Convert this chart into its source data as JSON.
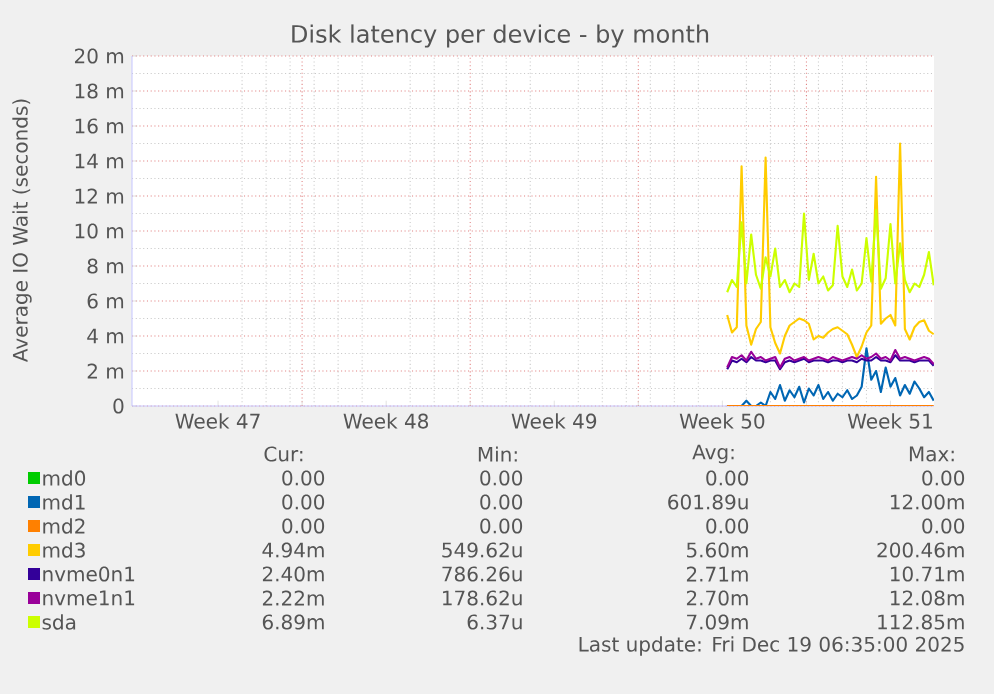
{
  "chart_data": {
    "type": "line",
    "title": "Disk latency per device - by month",
    "ylabel": "Average IO Wait (seconds)",
    "x": [
      "2025-12-10T16:48",
      "2025-12-10T21:36",
      "2025-12-11T02:24",
      "2025-12-11T07:12",
      "2025-12-11T12:00",
      "2025-12-11T16:48",
      "2025-12-11T21:36",
      "2025-12-12T02:24",
      "2025-12-12T07:12",
      "2025-12-12T12:00",
      "2025-12-12T16:48",
      "2025-12-12T21:36",
      "2025-12-13T02:24",
      "2025-12-13T07:12",
      "2025-12-13T12:00",
      "2025-12-13T16:48",
      "2025-12-13T21:36",
      "2025-12-14T02:24",
      "2025-12-14T07:12",
      "2025-12-14T12:00",
      "2025-12-14T16:48",
      "2025-12-14T21:36",
      "2025-12-15T02:24",
      "2025-12-15T07:12",
      "2025-12-15T12:00",
      "2025-12-15T16:48",
      "2025-12-15T21:36",
      "2025-12-16T02:24",
      "2025-12-16T07:12",
      "2025-12-16T12:00",
      "2025-12-16T16:48",
      "2025-12-16T21:36",
      "2025-12-17T02:24",
      "2025-12-17T07:12",
      "2025-12-17T12:00",
      "2025-12-17T16:48",
      "2025-12-17T21:36",
      "2025-12-18T02:24",
      "2025-12-18T07:12",
      "2025-12-18T12:00",
      "2025-12-18T16:48",
      "2025-12-18T21:36",
      "2025-12-19T02:24",
      "2025-12-19T07:12"
    ],
    "xlim": [
      "2025-11-15T22:00",
      "2025-12-19T07:30"
    ],
    "xticks": [
      {
        "value": "2025-11-19T12:00",
        "label": "Week 47"
      },
      {
        "value": "2025-11-23T00:00",
        "label": null
      },
      {
        "value": "2025-11-26T12:00",
        "label": "Week 48"
      },
      {
        "value": "2025-11-30T00:00",
        "label": null
      },
      {
        "value": "2025-12-03T12:00",
        "label": "Week 49"
      },
      {
        "value": "2025-12-07T00:00",
        "label": null
      },
      {
        "value": "2025-12-10T12:00",
        "label": "Week 50"
      },
      {
        "value": "2025-12-14T00:00",
        "label": null
      },
      {
        "value": "2025-12-17T12:00",
        "label": "Week 51"
      }
    ],
    "ylim": [
      0,
      20
    ],
    "yticks": [
      0,
      {
        "value": 2,
        "label": "2 m"
      },
      {
        "value": 4,
        "label": "4 m"
      },
      {
        "value": 6,
        "label": "6 m"
      },
      {
        "value": 8,
        "label": "8 m"
      },
      {
        "value": 10,
        "label": "10 m"
      },
      {
        "value": 12,
        "label": "12 m"
      },
      {
        "value": 14,
        "label": "14 m"
      },
      {
        "value": 16,
        "label": "16 m"
      },
      {
        "value": 18,
        "label": "18 m"
      },
      {
        "value": 20,
        "label": "20 m"
      }
    ],
    "grid": true,
    "legend": "bottom",
    "series": [
      {
        "name": "md0",
        "color": "#00cc00",
        "values": [
          null,
          null,
          null,
          null,
          null,
          null,
          null,
          null,
          null,
          null,
          null,
          null,
          null,
          null,
          null,
          null,
          null,
          null,
          null,
          null,
          null,
          null,
          null,
          null,
          null,
          null,
          null,
          null,
          null,
          null,
          null,
          null,
          null,
          null,
          null,
          null,
          null,
          null,
          null,
          null,
          null,
          null,
          null,
          null
        ]
      },
      {
        "name": "md1",
        "color": "#0066b3",
        "values": [
          0,
          0,
          0,
          0,
          0.3,
          0,
          0,
          0.2,
          0,
          0.8,
          0.4,
          1.2,
          0.3,
          0.9,
          0.5,
          1.1,
          0.2,
          1.0,
          0.6,
          1.2,
          0.4,
          0.8,
          0.3,
          0.7,
          0.5,
          0.9,
          0.4,
          0.6,
          1.1,
          3.3,
          1.5,
          2.0,
          0.8,
          2.2,
          1.1,
          1.6,
          0.6,
          1.2,
          0.7,
          1.4,
          1.0,
          0.5,
          0.8,
          0.3
        ]
      },
      {
        "name": "md2",
        "color": "#ff8000",
        "values": [
          0,
          0,
          0,
          0,
          0,
          0,
          0,
          0,
          0,
          0,
          0,
          0,
          0,
          0,
          0,
          0,
          0,
          0,
          0,
          0,
          0,
          0,
          0,
          0,
          0,
          0,
          0,
          0,
          0,
          0,
          0,
          0,
          0,
          0,
          0,
          0,
          0,
          0,
          0,
          0,
          0,
          0,
          0,
          0
        ]
      },
      {
        "name": "md3",
        "color": "#ffcc00",
        "values": [
          5.2,
          4.2,
          4.5,
          13.7,
          4.6,
          3.5,
          4.4,
          4.8,
          14.2,
          4.5,
          3.6,
          3.0,
          4.0,
          4.6,
          4.8,
          5.0,
          4.9,
          4.7,
          3.8,
          4.0,
          3.9,
          4.2,
          4.4,
          4.5,
          4.3,
          4.1,
          3.5,
          2.8,
          3.4,
          4.2,
          4.6,
          13.1,
          4.7,
          5.0,
          5.2,
          4.6,
          15.0,
          4.4,
          3.8,
          4.5,
          4.8,
          4.9,
          4.3,
          4.1
        ]
      },
      {
        "name": "nvme0n1",
        "color": "#330099",
        "values": [
          2.1,
          2.6,
          2.5,
          2.7,
          2.5,
          2.8,
          2.6,
          2.6,
          2.5,
          2.6,
          2.6,
          2.1,
          2.5,
          2.6,
          2.5,
          2.6,
          2.7,
          2.5,
          2.6,
          2.6,
          2.6,
          2.5,
          2.6,
          2.6,
          2.5,
          2.6,
          2.6,
          2.5,
          2.7,
          2.6,
          2.6,
          2.8,
          2.6,
          2.6,
          2.5,
          2.9,
          2.6,
          2.6,
          2.6,
          2.5,
          2.6,
          2.6,
          2.6,
          2.3
        ]
      },
      {
        "name": "nvme1n1",
        "color": "#990099",
        "values": [
          2.2,
          2.8,
          2.7,
          2.9,
          2.6,
          3.1,
          2.7,
          2.8,
          2.6,
          2.7,
          2.8,
          2.2,
          2.7,
          2.8,
          2.6,
          2.7,
          2.8,
          2.6,
          2.7,
          2.8,
          2.7,
          2.6,
          2.8,
          2.7,
          2.6,
          2.7,
          2.8,
          2.7,
          2.9,
          2.7,
          2.8,
          3.0,
          2.7,
          2.8,
          2.6,
          3.2,
          2.7,
          2.8,
          2.7,
          2.6,
          2.7,
          2.8,
          2.7,
          2.4
        ]
      },
      {
        "name": "sda",
        "color": "#ccff00",
        "values": [
          6.5,
          7.2,
          6.8,
          10.5,
          7.0,
          9.8,
          7.5,
          6.7,
          8.5,
          7.4,
          9.0,
          6.8,
          7.2,
          6.5,
          7.0,
          6.8,
          11.0,
          7.2,
          8.7,
          7.0,
          7.4,
          6.6,
          6.9,
          10.3,
          7.4,
          6.8,
          7.8,
          6.6,
          7.0,
          9.6,
          7.1,
          11.2,
          6.7,
          7.3,
          10.4,
          7.0,
          9.3,
          7.2,
          6.5,
          7.0,
          6.8,
          7.5,
          8.8,
          6.9
        ]
      }
    ],
    "annotations": [
      "Cur:",
      "Min:",
      "Avg:",
      "Max:",
      "0.00",
      "0.00",
      "0.00",
      "0.00",
      "0.00",
      "0.00",
      "601.89u",
      "12.00m",
      "0.00",
      "0.00",
      "0.00",
      "0.00",
      "4.94m",
      "549.62u",
      "5.60m",
      "200.46m",
      "2.40m",
      "786.26u",
      "2.71m",
      "10.71m",
      "2.22m",
      "178.62u",
      "2.70m",
      "12.08m",
      "6.89m",
      "6.37u",
      "7.09m",
      "112.85m",
      "Last update: Fri Dec 19 06:35:00 2025"
    ]
  }
}
